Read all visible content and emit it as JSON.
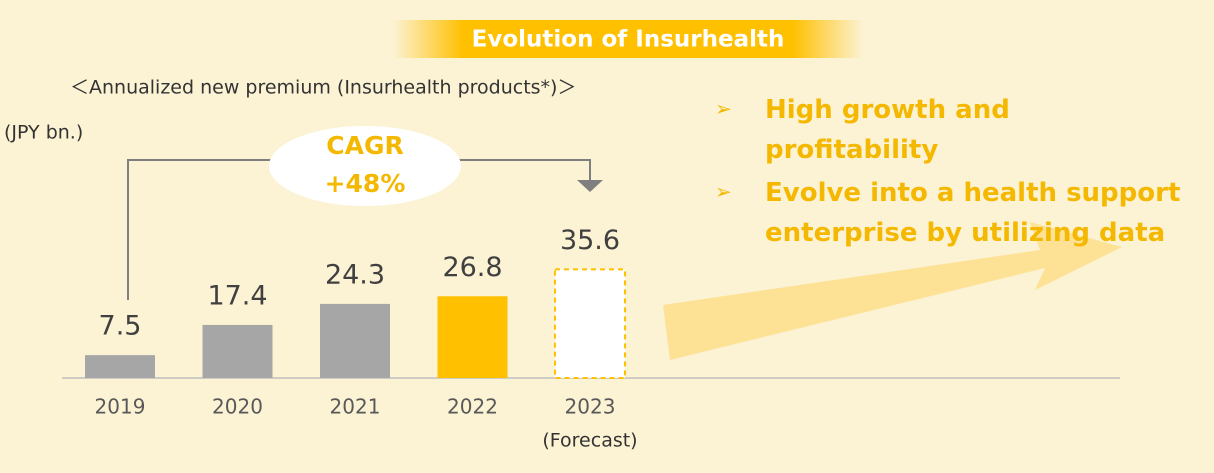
{
  "chart_data": {
    "type": "bar",
    "title": "Evolution of Insurhealth",
    "subtitle": "＜Annualized new premium (Insurhealth products*)＞",
    "unit_label": "(JPY bn.)",
    "annotation": [
      "CAGR",
      "+48%"
    ],
    "categories": [
      "2019",
      "2020",
      "2021",
      "2022",
      "2023"
    ],
    "category_notes": [
      null,
      null,
      null,
      null,
      "(Forecast)"
    ],
    "values": [
      7.5,
      17.4,
      24.3,
      26.8,
      35.6
    ],
    "colors": [
      "#a6a6a6",
      "#a6a6a6",
      "#a6a6a6",
      "#ffc000",
      "#ffffff"
    ],
    "bullets": [
      "High growth and profitability",
      "Evolve into a health support enterprise by utilizing data"
    ]
  }
}
